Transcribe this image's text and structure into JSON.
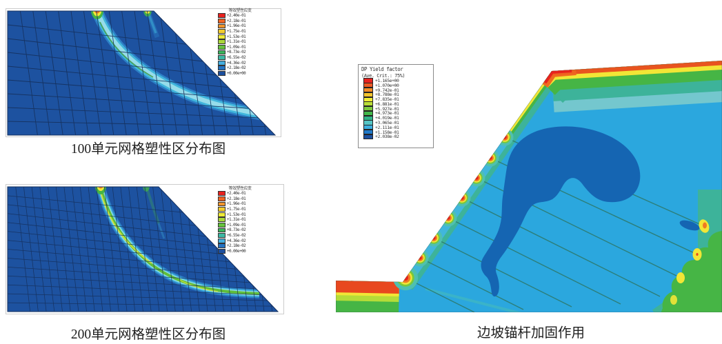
{
  "figures": {
    "mesh100": {
      "caption": "100单元网格塑性区分布图",
      "legend": {
        "title": "等效塑性应变",
        "values": [
          "+2.40e-01",
          "+2.18e-01",
          "+1.96e-01",
          "+1.75e-01",
          "+1.53e-01",
          "+1.31e-01",
          "+1.09e-01",
          "+8.73e-02",
          "+6.55e-02",
          "+4.36e-02",
          "+2.18e-02",
          "+0.00e+00"
        ]
      }
    },
    "mesh200": {
      "caption": "200单元网格塑性区分布图",
      "legend": {
        "title": "等效塑性应变",
        "values": [
          "+2.40e-01",
          "+2.18e-01",
          "+1.96e-01",
          "+1.75e-01",
          "+1.53e-01",
          "+1.31e-01",
          "+1.09e-01",
          "+8.73e-02",
          "+6.55e-02",
          "+4.36e-02",
          "+2.18e-02",
          "+0.00e+00"
        ]
      }
    },
    "slope": {
      "caption": "边坡锚杆加固作用",
      "legend": {
        "title": "DP Yield factor",
        "subtitle": "(Ave. Crit.: 75%)",
        "values": [
          "+1.165e+00",
          "+1.070e+00",
          "+9.742e-01",
          "+8.788e-01",
          "+7.835e-01",
          "+6.881e-01",
          "+5.927e-01",
          "+4.973e-01",
          "+4.019e-01",
          "+3.065e-01",
          "+2.111e-01",
          "+1.158e-01",
          "+2.038e-02"
        ]
      }
    }
  },
  "colors": {
    "rainbow12": [
      "#e8221f",
      "#ee6322",
      "#f3952b",
      "#f3cc2f",
      "#eeea38",
      "#abd739",
      "#66c23e",
      "#3bb55c",
      "#3cb8a4",
      "#45aede",
      "#2472c2",
      "#1c4f9e"
    ],
    "rainbow13": [
      "#e8221f",
      "#ec5a24",
      "#f28c28",
      "#f3c42d",
      "#f0ec36",
      "#b9dd37",
      "#7cc93d",
      "#42b84a",
      "#2fb387",
      "#54c4c4",
      "#3badde",
      "#2079c8",
      "#1c4f9e"
    ],
    "mesh_base": "#1d52a0",
    "mesh_line": "#16305c",
    "sky_blue": "#2ba7de",
    "deep_blue": "#1565b2",
    "teal": "#3db39a",
    "green": "#46b545",
    "yellow": "#f2e636",
    "orange": "#f07a22",
    "red_orange": "#e8541f",
    "red": "#e8231d",
    "pale_cyan": "#74c7ce",
    "cyan_band": "#41b6dc",
    "band_core": "#96dcea",
    "band_edge": "#2d7fc6"
  }
}
